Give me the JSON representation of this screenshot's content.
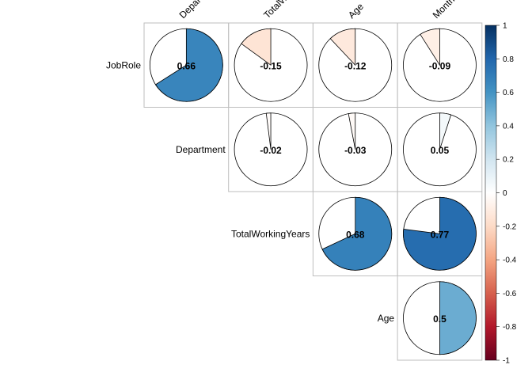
{
  "chart_data": {
    "type": "heatmap",
    "style": "correlation-pie-upper",
    "grid": true,
    "legend_placement": "right",
    "column_labels": [
      "Department",
      "TotalWorkingYears",
      "Age",
      "MonthlyIncome"
    ],
    "row_labels": [
      "JobRole",
      "Department",
      "TotalWorkingYears",
      "Age"
    ],
    "cells": [
      {
        "row": "JobRole",
        "col": "Department",
        "value": 0.66,
        "label": "0.66"
      },
      {
        "row": "JobRole",
        "col": "TotalWorkingYears",
        "value": -0.15,
        "label": "-0.15"
      },
      {
        "row": "JobRole",
        "col": "Age",
        "value": -0.12,
        "label": "-0.12"
      },
      {
        "row": "JobRole",
        "col": "MonthlyIncome",
        "value": -0.09,
        "label": "-0.09"
      },
      {
        "row": "Department",
        "col": "TotalWorkingYears",
        "value": -0.02,
        "label": "-0.02"
      },
      {
        "row": "Department",
        "col": "Age",
        "value": -0.03,
        "label": "-0.03"
      },
      {
        "row": "Department",
        "col": "MonthlyIncome",
        "value": 0.05,
        "label": "0.05"
      },
      {
        "row": "TotalWorkingYears",
        "col": "Age",
        "value": 0.68,
        "label": "0.68"
      },
      {
        "row": "TotalWorkingYears",
        "col": "MonthlyIncome",
        "value": 0.77,
        "label": "0.77"
      },
      {
        "row": "Age",
        "col": "MonthlyIncome",
        "value": 0.5,
        "label": "0.5"
      }
    ],
    "color_scale": {
      "range": [
        -1,
        1
      ],
      "ticks": [
        "1",
        "0.8",
        "0.6",
        "0.4",
        "0.2",
        "0",
        "-0.2",
        "-0.4",
        "-0.6",
        "-0.8",
        "-1"
      ],
      "colors": [
        "#67001F",
        "#B2182B",
        "#D6604D",
        "#F4A582",
        "#FDDBC7",
        "#FFFFFF",
        "#D1E5F0",
        "#92C5DE",
        "#4393C3",
        "#2166AC",
        "#053061"
      ]
    }
  }
}
